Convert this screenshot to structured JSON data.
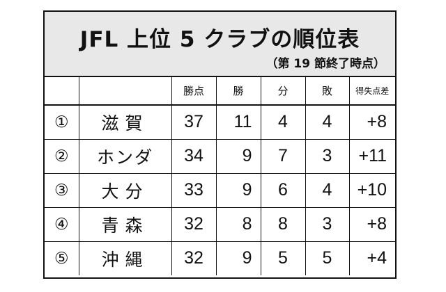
{
  "title": "JFL 上位 5 クラブの順位表",
  "subtitle": "（第 19 節終了時点）",
  "headers": {
    "rank": "",
    "club": "",
    "points": "勝点",
    "wins": "勝",
    "draws": "分",
    "losses": "敗",
    "goal_diff": "得失点差"
  },
  "rows": [
    {
      "rank": "①",
      "club": "滋賀",
      "points": "37",
      "wins": "11",
      "draws": "4",
      "losses": "4",
      "goal_diff": "+8"
    },
    {
      "rank": "②",
      "club": "ホンダ",
      "points": "34",
      "wins": "9",
      "draws": "7",
      "losses": "3",
      "goal_diff": "+11"
    },
    {
      "rank": "③",
      "club": "大分",
      "points": "33",
      "wins": "9",
      "draws": "6",
      "losses": "4",
      "goal_diff": "+10"
    },
    {
      "rank": "④",
      "club": "青森",
      "points": "32",
      "wins": "8",
      "draws": "8",
      "losses": "3",
      "goal_diff": "+8"
    },
    {
      "rank": "⑤",
      "club": "沖縄",
      "points": "32",
      "wins": "9",
      "draws": "5",
      "losses": "5",
      "goal_diff": "+4"
    }
  ]
}
